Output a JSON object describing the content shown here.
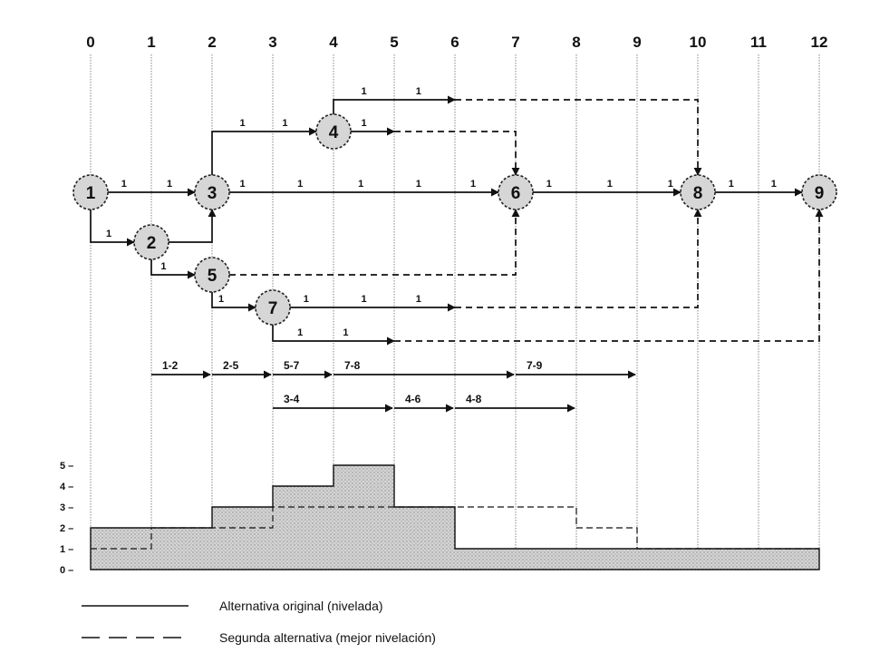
{
  "time_scale": {
    "ticks": [
      "0",
      "1",
      "2",
      "3",
      "4",
      "5",
      "6",
      "7",
      "8",
      "9",
      "10",
      "11",
      "12"
    ]
  },
  "nodes": [
    {
      "id": "n1",
      "label": "1",
      "t": 0,
      "row": "mid"
    },
    {
      "id": "n2",
      "label": "2",
      "t": 1,
      "row": "r2"
    },
    {
      "id": "n3",
      "label": "3",
      "t": 2,
      "row": "mid"
    },
    {
      "id": "n4",
      "label": "4",
      "t": 4,
      "row": "r4"
    },
    {
      "id": "n5",
      "label": "5",
      "t": 2,
      "row": "r5"
    },
    {
      "id": "n6",
      "label": "6",
      "t": 7,
      "row": "mid"
    },
    {
      "id": "n7",
      "label": "7",
      "t": 3,
      "row": "r7"
    },
    {
      "id": "n8",
      "label": "8",
      "t": 10,
      "row": "mid"
    },
    {
      "id": "n9",
      "label": "9",
      "t": 12,
      "row": "mid"
    }
  ],
  "duration_labels": [
    {
      "text": "1",
      "t": 0.55,
      "row": "mid"
    },
    {
      "text": "1",
      "t": 1.3,
      "row": "mid"
    },
    {
      "text": "1",
      "t": 2.5,
      "row": "mid"
    },
    {
      "text": "1",
      "t": 3.45,
      "row": "mid"
    },
    {
      "text": "1",
      "t": 4.45,
      "row": "mid"
    },
    {
      "text": "1",
      "t": 5.4,
      "row": "mid"
    },
    {
      "text": "1",
      "t": 6.3,
      "row": "mid"
    },
    {
      "text": "1",
      "t": 7.55,
      "row": "mid"
    },
    {
      "text": "1",
      "t": 8.55,
      "row": "mid"
    },
    {
      "text": "1",
      "t": 9.55,
      "row": "mid"
    },
    {
      "text": "1",
      "t": 10.55,
      "row": "mid"
    },
    {
      "text": "1",
      "t": 11.25,
      "row": "mid"
    },
    {
      "text": "1",
      "t": 2.5,
      "row": "r4"
    },
    {
      "text": "1",
      "t": 3.2,
      "row": "r4"
    },
    {
      "text": "1",
      "t": 4.5,
      "row": "r4"
    },
    {
      "text": "1",
      "t": 4.5,
      "row": "r4b"
    },
    {
      "text": "1",
      "t": 5.4,
      "row": "r4b"
    },
    {
      "text": "1",
      "t": 0.3,
      "row": "r2"
    },
    {
      "text": "1",
      "t": 1.2,
      "row": "r5"
    },
    {
      "text": "1",
      "t": 2.15,
      "row": "r7"
    },
    {
      "text": "1",
      "t": 3.55,
      "row": "r7"
    },
    {
      "text": "1",
      "t": 4.5,
      "row": "r7"
    },
    {
      "text": "1",
      "t": 5.4,
      "row": "r7"
    },
    {
      "text": "1",
      "t": 3.45,
      "row": "r7b"
    },
    {
      "text": "1",
      "t": 4.2,
      "row": "r7b"
    }
  ],
  "activity_bars": [
    {
      "label": "1-2",
      "from": 1,
      "to": 2,
      "row": 1
    },
    {
      "label": "2-5",
      "from": 2,
      "to": 3,
      "row": 1
    },
    {
      "label": "5-7",
      "from": 3,
      "to": 4,
      "row": 1
    },
    {
      "label": "7-8",
      "from": 4,
      "to": 7,
      "row": 1
    },
    {
      "label": "7-9",
      "from": 7,
      "to": 9,
      "row": 1
    },
    {
      "label": "3-4",
      "from": 3,
      "to": 5,
      "row": 2
    },
    {
      "label": "4-6",
      "from": 5,
      "to": 6,
      "row": 2
    },
    {
      "label": "4-8",
      "from": 6,
      "to": 8,
      "row": 2
    }
  ],
  "resource_chart": {
    "y_ticks": [
      "0 –",
      "1 –",
      "2 –",
      "3 –",
      "4 –",
      "5 –"
    ],
    "original_levels": [
      2,
      2,
      3,
      4,
      5,
      3,
      1,
      1,
      1,
      1,
      1,
      1
    ],
    "alternative_levels": [
      1,
      2,
      2,
      3,
      3,
      3,
      3,
      3,
      2,
      1,
      1,
      1
    ]
  },
  "legend": {
    "solid_label": "Alternativa original (nivelada)",
    "dashed_label": "Segunda alternativa (mejor nivelación)"
  }
}
